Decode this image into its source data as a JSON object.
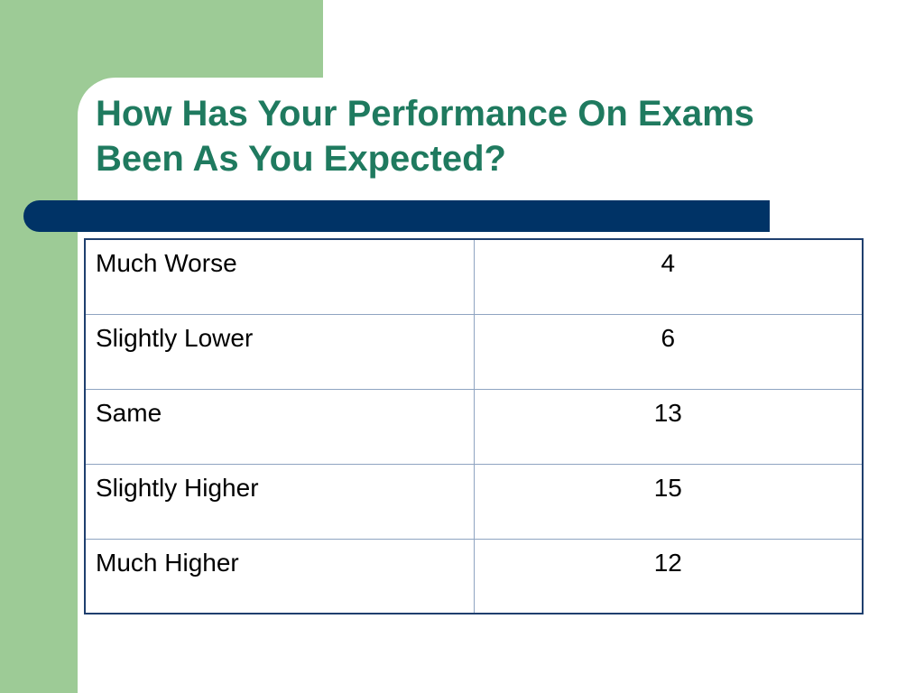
{
  "slide": {
    "title_lines": [
      "How Has Your Performance On Exams",
      "Been As You Expected?"
    ],
    "colors": {
      "title": "#1f7a5f",
      "side_band": "#9dcb96",
      "rule_bar": "#003366",
      "table_border": "#1f3f6e"
    }
  },
  "table": {
    "rows": [
      {
        "label": "Much Worse",
        "value": "4"
      },
      {
        "label": "Slightly Lower",
        "value": "6"
      },
      {
        "label": "Same",
        "value": "13"
      },
      {
        "label": "Slightly Higher",
        "value": "15"
      },
      {
        "label": "Much Higher",
        "value": "12"
      }
    ]
  }
}
